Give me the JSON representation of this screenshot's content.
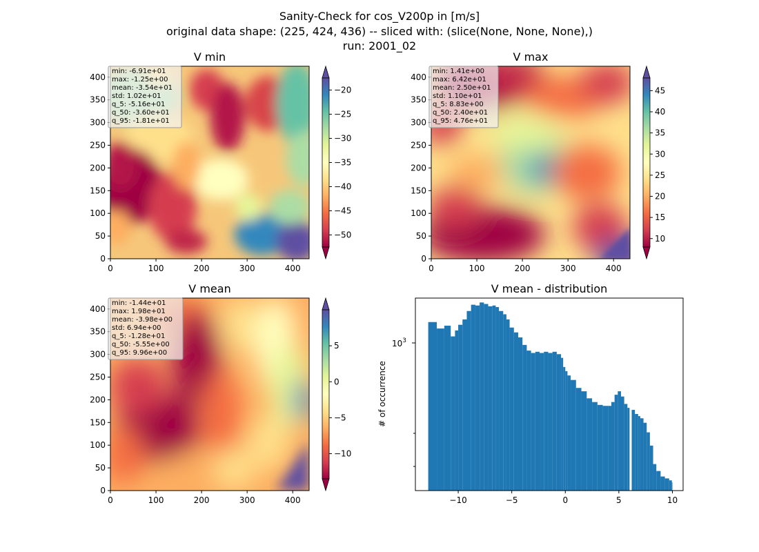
{
  "suptitle": {
    "line1": "Sanity-Check for cos_V200p in [m/s]",
    "line2": "original data shape: (225, 424, 436) -- sliced with: (slice(None, None, None),)",
    "line3": "run: 2001_02"
  },
  "colormap": [
    "#9e0142",
    "#d53e4f",
    "#f46d43",
    "#fdae61",
    "#fee08b",
    "#ffffbf",
    "#e6f598",
    "#abdda4",
    "#66c2a5",
    "#3288bd",
    "#5e4fa2"
  ],
  "accent": "#1f77b4",
  "chart_data": [
    {
      "type": "heatmap",
      "title": "V min",
      "xlim": [
        0,
        436
      ],
      "ylim": [
        0,
        424
      ],
      "xticks": [
        "0",
        "100",
        "200",
        "300",
        "400"
      ],
      "yticks": [
        "0",
        "50",
        "100",
        "150",
        "200",
        "250",
        "300",
        "350",
        "400"
      ],
      "colorbar": {
        "min": -52.5,
        "max": -17.5,
        "ticks": [
          "−50",
          "−45",
          "−40",
          "−35",
          "−30",
          "−25",
          "−20"
        ],
        "extend": "both"
      },
      "stats": [
        "min: -6.91e+01",
        "max: -1.25e+00",
        "mean: -3.54e+01",
        "std: 1.02e+01",
        "q_5: -5.16e+01",
        "q_50: -3.60e+01",
        "q_95: -1.81e+01"
      ]
    },
    {
      "type": "heatmap",
      "title": "V max",
      "xlim": [
        0,
        436
      ],
      "ylim": [
        0,
        424
      ],
      "xticks": [
        "0",
        "100",
        "200",
        "300",
        "400"
      ],
      "yticks": [
        "0",
        "50",
        "100",
        "150",
        "200",
        "250",
        "300",
        "350",
        "400"
      ],
      "colorbar": {
        "min": 8,
        "max": 48,
        "ticks": [
          "10",
          "15",
          "20",
          "25",
          "30",
          "35",
          "40",
          "45"
        ],
        "extend": "both"
      },
      "stats": [
        "min: 1.41e+00",
        "max: 6.42e+01",
        "mean: 2.50e+01",
        "std: 1.10e+01",
        "q_5: 8.83e+00",
        "q_50: 2.40e+01",
        "q_95: 4.76e+01"
      ]
    },
    {
      "type": "heatmap",
      "title": "V mean",
      "xlim": [
        0,
        436
      ],
      "ylim": [
        0,
        424
      ],
      "xticks": [
        "0",
        "100",
        "200",
        "300",
        "400"
      ],
      "yticks": [
        "0",
        "50",
        "100",
        "150",
        "200",
        "250",
        "300",
        "350",
        "400"
      ],
      "colorbar": {
        "min": -13.5,
        "max": 10,
        "ticks": [
          "−10",
          "−5",
          "0",
          "5"
        ],
        "extend": "both"
      },
      "stats": [
        "min: -1.44e+01",
        "max: 1.98e+01",
        "mean: -3.98e+00",
        "std: 6.94e+00",
        "q_5: -1.28e+01",
        "q_50: -5.55e+00",
        "q_95: 9.96e+00"
      ]
    },
    {
      "type": "bar",
      "title": "V mean - distribution",
      "ylabel": "# of occurrence",
      "xlim": [
        -14,
        11
      ],
      "xticks": [
        -10,
        -5,
        0,
        5,
        10
      ],
      "xtick_labels": [
        "−10",
        "−5",
        "0",
        "5",
        "10"
      ],
      "yscale": "log",
      "ylim": [
        250,
        1500
      ],
      "ytick_label": "10",
      "ytick_exp": "3",
      "bins": [
        [
          -12.8,
          1200
        ],
        [
          -12.0,
          1130
        ],
        [
          -11.3,
          1160
        ],
        [
          -10.7,
          1050
        ],
        [
          -10.3,
          1110
        ],
        [
          -10.0,
          1170
        ],
        [
          -9.6,
          1230
        ],
        [
          -9.2,
          1330
        ],
        [
          -8.8,
          1410
        ],
        [
          -8.4,
          1400
        ],
        [
          -8.0,
          1440
        ],
        [
          -7.6,
          1420
        ],
        [
          -7.2,
          1390
        ],
        [
          -6.8,
          1400
        ],
        [
          -6.5,
          1380
        ],
        [
          -6.2,
          1330
        ],
        [
          -5.8,
          1290
        ],
        [
          -5.5,
          1230
        ],
        [
          -5.2,
          1140
        ],
        [
          -4.8,
          1090
        ],
        [
          -4.4,
          1040
        ],
        [
          -4.0,
          970
        ],
        [
          -3.6,
          920
        ],
        [
          -3.2,
          900
        ],
        [
          -2.8,
          910
        ],
        [
          -2.4,
          900
        ],
        [
          -2.0,
          910
        ],
        [
          -1.6,
          900
        ],
        [
          -1.2,
          910
        ],
        [
          -0.8,
          890
        ],
        [
          -0.4,
          860
        ],
        [
          -0.2,
          790
        ],
        [
          0.0,
          760
        ],
        [
          0.2,
          730
        ],
        [
          0.5,
          700
        ],
        [
          1.0,
          650
        ],
        [
          1.5,
          630
        ],
        [
          2.0,
          590
        ],
        [
          2.5,
          570
        ],
        [
          3.0,
          555
        ],
        [
          3.5,
          550
        ],
        [
          4.0,
          550
        ],
        [
          4.3,
          570
        ],
        [
          4.6,
          610
        ],
        [
          4.9,
          630
        ],
        [
          5.2,
          600
        ],
        [
          5.5,
          560
        ],
        [
          5.8,
          540
        ],
        [
          6.0,
          250
        ],
        [
          6.2,
          530
        ],
        [
          6.5,
          510
        ],
        [
          6.8,
          500
        ],
        [
          7.0,
          490
        ],
        [
          7.3,
          470
        ],
        [
          7.6,
          430
        ],
        [
          7.9,
          380
        ],
        [
          8.2,
          320
        ],
        [
          8.5,
          300
        ],
        [
          8.9,
          285
        ],
        [
          9.3,
          280
        ],
        [
          9.7,
          275
        ],
        [
          9.95,
          270
        ]
      ]
    }
  ]
}
